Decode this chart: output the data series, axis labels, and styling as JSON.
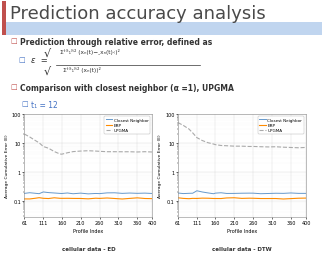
{
  "title": "Prediction accuracy analysis",
  "title_color": "#4A4A4A",
  "title_fontsize": 13,
  "header_bar_color": "#8DB4E2",
  "accent_bar_color": "#C0504D",
  "bg_color": "#FFFFFF",
  "bullet1": "Prediction through relative error, defined as",
  "bullet2": "Comparison with closest neighbor (α =1), UPGMA",
  "sub_bullet": "t₁ = 12",
  "xlabel": "Profile Index",
  "ylabel": "Average Cumulative Error (E)",
  "label_cn": "Closest Neighbor",
  "label_erp": "ERP",
  "label_upgma": "UPGMA",
  "plot_bg": "#FFFFFF",
  "cn_color": "#6699CC",
  "erp_color": "#FF8C00",
  "upgma_color": "#AAAAAA",
  "caption_ed": "cellular data - ED",
  "caption_dtw": "cellular data - DTW"
}
